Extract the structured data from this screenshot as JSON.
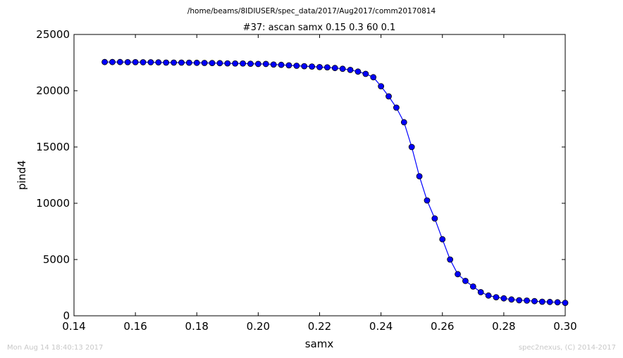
{
  "chart_data": {
    "type": "line",
    "suptitle": "/home/beams/8IDIUSER/spec_data/2017/Aug2017/comm20170814",
    "title": "#37: ascan  samx 0.15 0.3  60 0.1",
    "xlabel": "samx",
    "ylabel": "pind4",
    "xlim": [
      0.14,
      0.3
    ],
    "ylim": [
      0,
      25000
    ],
    "xticks": [
      "0.14",
      "0.16",
      "0.18",
      "0.20",
      "0.22",
      "0.24",
      "0.26",
      "0.28",
      "0.30"
    ],
    "yticks": [
      "0",
      "5000",
      "10000",
      "15000",
      "20000",
      "25000"
    ],
    "grid": false,
    "marker": "circle",
    "series": [
      {
        "color": "#0000ff",
        "x": [
          0.15,
          0.1525,
          0.155,
          0.1575,
          0.16,
          0.1625,
          0.165,
          0.1675,
          0.17,
          0.1725,
          0.175,
          0.1775,
          0.18,
          0.1825,
          0.185,
          0.1875,
          0.19,
          0.1925,
          0.195,
          0.1975,
          0.2,
          0.2025,
          0.205,
          0.2075,
          0.21,
          0.2125,
          0.215,
          0.2175,
          0.22,
          0.2225,
          0.225,
          0.2275,
          0.23,
          0.2325,
          0.235,
          0.2375,
          0.24,
          0.2425,
          0.245,
          0.2475,
          0.25,
          0.2525,
          0.255,
          0.2575,
          0.26,
          0.2625,
          0.265,
          0.2675,
          0.27,
          0.2725,
          0.275,
          0.2775,
          0.28,
          0.2825,
          0.285,
          0.2875,
          0.29,
          0.2925,
          0.295,
          0.2975,
          0.3
        ],
        "y": [
          22550,
          22550,
          22550,
          22540,
          22540,
          22530,
          22530,
          22520,
          22500,
          22500,
          22500,
          22490,
          22480,
          22470,
          22460,
          22450,
          22430,
          22420,
          22420,
          22400,
          22380,
          22380,
          22330,
          22300,
          22260,
          22220,
          22180,
          22150,
          22100,
          22080,
          22020,
          21950,
          21850,
          21700,
          21500,
          21200,
          20400,
          19500,
          18500,
          17200,
          15000,
          12400,
          10250,
          8650,
          6800,
          5000,
          3700,
          3100,
          2600,
          2100,
          1800,
          1650,
          1550,
          1450,
          1380,
          1350,
          1300,
          1250,
          1230,
          1200,
          1150
        ]
      }
    ]
  },
  "footer": {
    "timestamp": "Mon Aug 14 18:40:13 2017",
    "credit": "spec2nexus, (C) 2014-2017"
  }
}
